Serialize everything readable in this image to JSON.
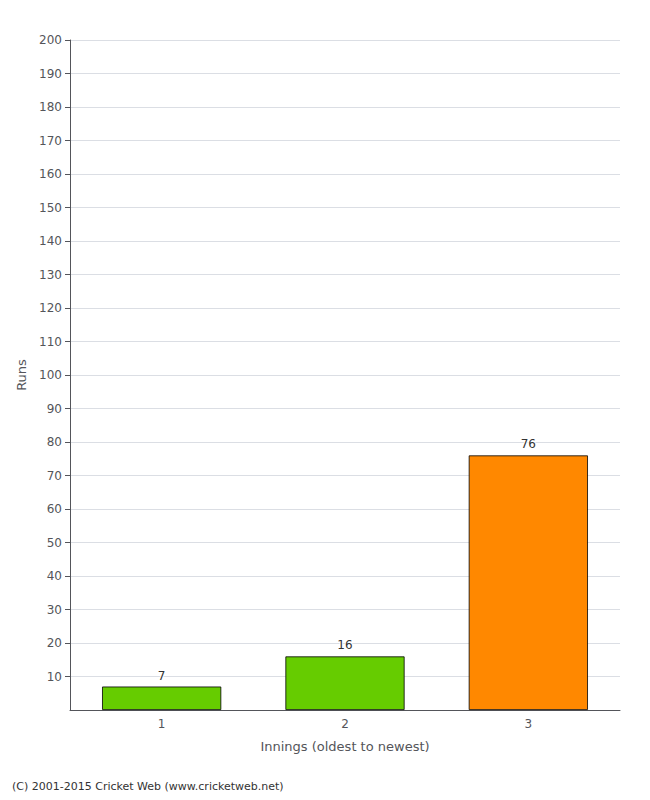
{
  "chart_data": {
    "type": "bar",
    "categories": [
      "1",
      "2",
      "3"
    ],
    "values": [
      7,
      16,
      76
    ],
    "colors": [
      "#66cc00",
      "#66cc00",
      "#ff8800"
    ],
    "xlabel": "Innings (oldest to newest)",
    "ylabel": "Runs",
    "ylim": [
      0,
      200
    ],
    "yticks": [
      10,
      20,
      30,
      40,
      50,
      60,
      70,
      80,
      90,
      100,
      110,
      120,
      130,
      140,
      150,
      160,
      170,
      180,
      190,
      200
    ],
    "grid": true,
    "data_labels": true,
    "annotations": [
      "(C) 2001-2015 Cricket Web (www.cricketweb.net)"
    ]
  }
}
